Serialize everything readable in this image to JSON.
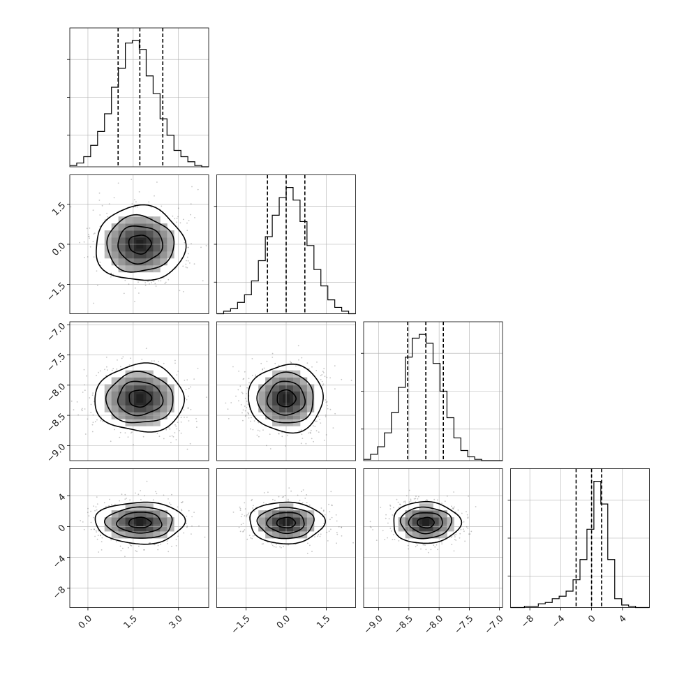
{
  "chart_data": {
    "type": "corner",
    "grid": true,
    "title": "",
    "parameters": [
      {
        "name": "",
        "range": [
          -0.6,
          4.0
        ],
        "ticks": [
          0.0,
          1.5,
          3.0
        ],
        "tick_labels": [
          "0.0",
          "1.5",
          "3.0"
        ],
        "mean": 1.72,
        "sigma": 0.74,
        "quantiles": [
          1.0,
          1.72,
          2.48
        ],
        "hist_ylim": [
          0,
          1.1
        ],
        "hist_ticks": [
          0.25,
          0.55,
          0.85
        ]
      },
      {
        "name": "",
        "range": [
          -2.6,
          2.6
        ],
        "ticks": [
          -1.5,
          0.0,
          1.5
        ],
        "tick_labels": [
          "−1.5",
          "0.0",
          "1.5"
        ],
        "mean": 0.0,
        "sigma": 0.7,
        "quantiles": [
          -0.7,
          0.0,
          0.7
        ],
        "hist_ylim": [
          0,
          1.1
        ],
        "hist_ticks": [
          0.25,
          0.55,
          0.85
        ]
      },
      {
        "name": "",
        "range": [
          -9.25,
          -6.95
        ],
        "ticks": [
          -9.0,
          -8.5,
          -8.0,
          -7.5,
          -7.0
        ],
        "tick_labels": [
          "−9.0",
          "−8.5",
          "−8.0",
          "−7.5",
          "−7.0"
        ],
        "mean": -8.22,
        "sigma": 0.28,
        "quantiles": [
          -8.52,
          -8.22,
          -7.93
        ],
        "hist_ylim": [
          0,
          1.1
        ],
        "hist_ticks": [
          0.25,
          0.55,
          0.85
        ]
      },
      {
        "name": "",
        "range": [
          -10.5,
          7.5
        ],
        "ticks": [
          -8,
          -4,
          0,
          4
        ],
        "tick_labels": [
          "−8",
          "−4",
          "0",
          "4"
        ],
        "mean": 0.5,
        "sigma": 1.8,
        "quantiles": [
          -2.0,
          0.0,
          1.3
        ],
        "hist_ylim": [
          0,
          1.1
        ],
        "hist_ticks": [
          0.25,
          0.55,
          0.85
        ]
      }
    ],
    "histograms": [
      {
        "param": 0,
        "bins": 20,
        "range": [
          -0.6,
          4.0
        ],
        "heights": [
          0.01,
          0.03,
          0.08,
          0.17,
          0.28,
          0.42,
          0.63,
          0.78,
          0.98,
          1.0,
          0.93,
          0.72,
          0.58,
          0.38,
          0.25,
          0.13,
          0.08,
          0.04,
          0.01,
          0.0
        ]
      },
      {
        "param": 1,
        "bins": 20,
        "range": [
          -2.6,
          2.6
        ],
        "heights": [
          0.0,
          0.02,
          0.04,
          0.09,
          0.15,
          0.26,
          0.42,
          0.61,
          0.78,
          0.92,
          1.0,
          0.9,
          0.73,
          0.54,
          0.35,
          0.22,
          0.11,
          0.05,
          0.02,
          0.0
        ]
      },
      {
        "param": 2,
        "bins": 20,
        "range": [
          -9.25,
          -6.95
        ],
        "heights": [
          0.01,
          0.05,
          0.11,
          0.22,
          0.38,
          0.58,
          0.82,
          0.97,
          1.0,
          0.93,
          0.77,
          0.55,
          0.34,
          0.18,
          0.08,
          0.03,
          0.01,
          0.0,
          0.0,
          0.0
        ]
      },
      {
        "param": 3,
        "bins": 20,
        "range": [
          -10.5,
          7.5
        ],
        "heights": [
          0.0,
          0.0,
          0.01,
          0.01,
          0.03,
          0.04,
          0.07,
          0.09,
          0.13,
          0.22,
          0.38,
          0.62,
          1.0,
          0.82,
          0.38,
          0.07,
          0.02,
          0.01,
          0.0,
          0.0
        ]
      }
    ],
    "pairs": [
      {
        "x": 0,
        "y": 1,
        "contour_levels": [
          0.5,
          1.0,
          1.5,
          2.0
        ],
        "irregularity": 0.06
      },
      {
        "x": 0,
        "y": 2,
        "contour_levels": [
          0.5,
          1.0,
          1.5,
          2.0
        ],
        "irregularity": 0.06
      },
      {
        "x": 1,
        "y": 2,
        "contour_levels": [
          0.5,
          1.0,
          1.5,
          2.0
        ],
        "irregularity": 0.05
      },
      {
        "x": 0,
        "y": 3,
        "contour_levels": [
          0.5,
          1.0,
          1.5,
          2.0
        ],
        "irregularity": 0.05,
        "y_sigma_scale": 0.75
      },
      {
        "x": 1,
        "y": 3,
        "contour_levels": [
          0.5,
          1.0,
          1.5,
          2.0
        ],
        "irregularity": 0.05,
        "y_sigma_scale": 0.75
      },
      {
        "x": 2,
        "y": 3,
        "contour_levels": [
          0.5,
          1.0,
          1.5,
          2.0
        ],
        "irregularity": 0.05,
        "y_sigma_scale": 0.75
      }
    ],
    "colors": {
      "line": "#000000",
      "grid": "#b0b0b0",
      "points": "#555555",
      "density_dark": "#202020"
    }
  }
}
